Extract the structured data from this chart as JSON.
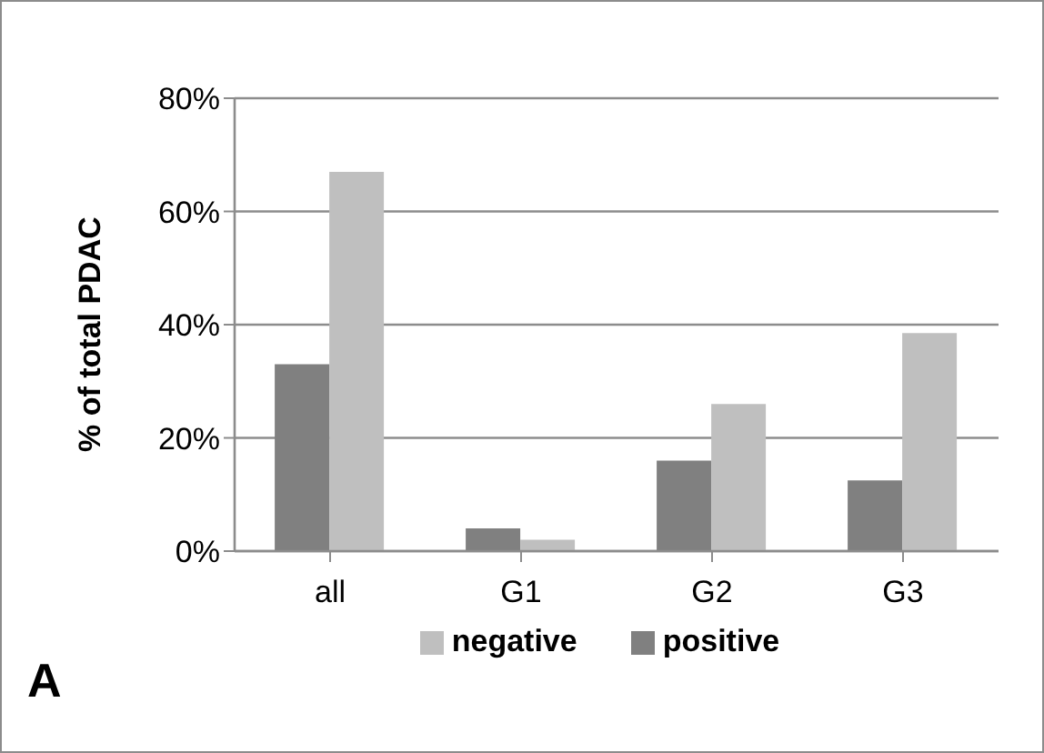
{
  "chart_data": {
    "type": "bar",
    "ylabel": "% of total PDAC",
    "categories": [
      "all",
      "G1",
      "G2",
      "G3"
    ],
    "series": [
      {
        "name": "positive",
        "color": "#808080",
        "values": [
          33,
          4,
          16,
          12.5
        ]
      },
      {
        "name": "negative",
        "color": "#bfbfbf",
        "values": [
          67,
          2,
          26,
          38.5
        ]
      }
    ],
    "ylim": [
      0,
      80
    ],
    "yticks": [
      {
        "value": 0,
        "label": "0%"
      },
      {
        "value": 20,
        "label": "20%"
      },
      {
        "value": 40,
        "label": "40%"
      },
      {
        "value": 60,
        "label": "60%"
      },
      {
        "value": 80,
        "label": "80%"
      }
    ],
    "grid": "y",
    "legend": "bottom",
    "annotations": [
      "A"
    ]
  }
}
